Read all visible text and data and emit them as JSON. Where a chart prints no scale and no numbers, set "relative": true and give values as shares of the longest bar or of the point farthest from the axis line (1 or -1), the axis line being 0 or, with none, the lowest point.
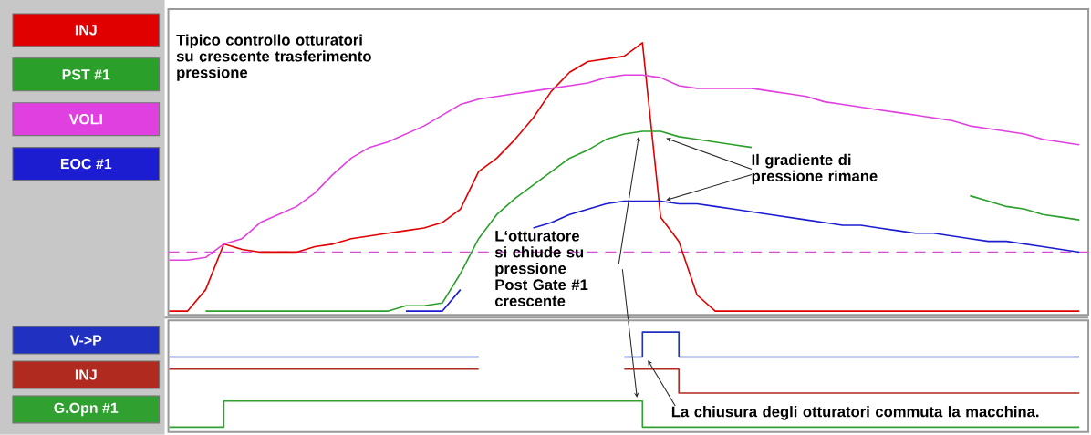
{
  "chart_data": [
    {
      "type": "line",
      "relative": true,
      "legend": "left",
      "categories": [
        null,
        null,
        null,
        null,
        null,
        null,
        null,
        null,
        null,
        null,
        null,
        null,
        null,
        null,
        null,
        null,
        null,
        null,
        null,
        null,
        null,
        null,
        null,
        null,
        null,
        null,
        null,
        null,
        null,
        null,
        null,
        null,
        null,
        null,
        null,
        null,
        null,
        null,
        null,
        null,
        null,
        null,
        null,
        null,
        null,
        null,
        null,
        null,
        null,
        null,
        null
      ],
      "series": [
        {
          "name": "INJ",
          "color": "#e00000",
          "values": [
            0,
            0,
            0.08,
            0.25,
            0.23,
            0.22,
            0.22,
            0.22,
            0.24,
            0.25,
            0.27,
            0.28,
            0.29,
            0.3,
            0.31,
            0.33,
            0.38,
            0.52,
            0.57,
            0.64,
            0.72,
            0.82,
            0.89,
            0.93,
            0.94,
            0.95,
            1.0,
            0.35,
            0.26,
            0.06,
            0,
            0,
            0,
            0,
            0,
            0,
            0,
            0,
            0,
            0,
            0,
            0,
            0,
            0,
            0,
            0,
            0,
            0,
            0,
            0,
            0
          ]
        },
        {
          "name": "PST #1",
          "color": "#2aa02a",
          "values": [
            null,
            null,
            0,
            0,
            0,
            0,
            0,
            0,
            0,
            0,
            0,
            0,
            0,
            0.02,
            0.02,
            0.03,
            0.14,
            0.27,
            0.36,
            0.42,
            0.47,
            0.52,
            0.57,
            0.6,
            0.64,
            0.66,
            0.67,
            0.67,
            0.65,
            0.64,
            0.63,
            0.62,
            0.61,
            null,
            null,
            null,
            null,
            null,
            null,
            null,
            null,
            null,
            null,
            null,
            0.43,
            0.41,
            0.39,
            0.38,
            0.36,
            0.35,
            0.34
          ]
        },
        {
          "name": "VOLI",
          "color": "#e040e0",
          "values": [
            0.19,
            0.19,
            0.2,
            0.25,
            0.27,
            0.33,
            0.36,
            0.39,
            0.44,
            0.51,
            0.57,
            0.61,
            0.63,
            0.66,
            0.69,
            0.73,
            0.77,
            0.79,
            0.8,
            0.81,
            0.82,
            0.83,
            0.84,
            0.85,
            0.87,
            0.88,
            0.88,
            0.87,
            0.84,
            0.83,
            0.83,
            0.83,
            0.83,
            0.82,
            0.81,
            0.8,
            0.78,
            0.77,
            0.76,
            0.75,
            0.74,
            0.73,
            0.72,
            0.71,
            0.69,
            0.68,
            0.67,
            0.66,
            0.64,
            0.63,
            0.62
          ]
        },
        {
          "name": "EOC #1",
          "color": "#1c1cd0",
          "values": [
            null,
            null,
            null,
            null,
            null,
            null,
            null,
            null,
            null,
            null,
            null,
            null,
            null,
            0,
            0,
            0,
            0.08,
            null,
            null,
            null,
            0.31,
            0.33,
            0.36,
            0.38,
            0.4,
            0.41,
            0.41,
            0.41,
            0.4,
            0.4,
            0.39,
            0.38,
            0.37,
            0.36,
            0.35,
            0.34,
            0.33,
            0.32,
            0.32,
            0.31,
            0.3,
            0.29,
            0.29,
            0.28,
            0.27,
            0.26,
            0.26,
            0.25,
            0.24,
            0.23,
            0.22
          ]
        }
      ],
      "ref_lines": [
        {
          "axis": "y",
          "value": 0.22,
          "color": "#d050d0",
          "line_style": "dashed"
        }
      ],
      "annotations": [
        "Tipico controllo otturatori su crescente trasferimento pressione",
        "Il gradiente di pressione rimane",
        "L‘otturatore si chiude su pressione Post Gate #1 crescente"
      ]
    },
    {
      "type": "step",
      "relative": true,
      "legend": "left",
      "categories": [
        null,
        null,
        null,
        null,
        null,
        null,
        null,
        null,
        null,
        null,
        null,
        null,
        null,
        null,
        null,
        null,
        null,
        null,
        null,
        null,
        null,
        null,
        null,
        null,
        null,
        null,
        null,
        null,
        null,
        null,
        null,
        null,
        null,
        null,
        null,
        null,
        null,
        null,
        null,
        null,
        null,
        null,
        null,
        null,
        null,
        null,
        null,
        null,
        null,
        null,
        null
      ],
      "series": [
        {
          "name": "V->P",
          "color": "#2030c0",
          "values": [
            0.75,
            0.75,
            0.75,
            0.75,
            0.75,
            0.75,
            0.75,
            0.75,
            0.75,
            0.75,
            0.75,
            0.75,
            0.75,
            0.75,
            0.75,
            0.75,
            0.75,
            0.75,
            null,
            null,
            null,
            null,
            null,
            null,
            null,
            0.75,
            1.0,
            1.0,
            0.75,
            0.75,
            0.75,
            0.75,
            0.75,
            0.75,
            0.75,
            0.75,
            0.75,
            0.75,
            0.75,
            0.75,
            0.75,
            0.75,
            0.75,
            0.75,
            0.75,
            0.75,
            0.75,
            0.75,
            0.75,
            0.75,
            0.75
          ]
        },
        {
          "name": "INJ",
          "color": "#b02a20",
          "values": [
            0.63,
            0.63,
            0.63,
            0.63,
            0.63,
            0.63,
            0.63,
            0.63,
            0.63,
            0.63,
            0.63,
            0.63,
            0.63,
            0.63,
            0.63,
            0.63,
            0.63,
            0.63,
            null,
            null,
            null,
            null,
            null,
            null,
            null,
            0.63,
            0.63,
            0.63,
            0.39,
            0.39,
            0.39,
            0.39,
            0.39,
            0.39,
            0.39,
            0.39,
            0.39,
            0.39,
            0.39,
            0.39,
            0.39,
            0.39,
            0.39,
            0.39,
            0.39,
            0.39,
            0.39,
            0.39,
            0.39,
            0.39,
            0.39
          ]
        },
        {
          "name": "G.Opn #1",
          "color": "#30a030",
          "values": [
            0.05,
            0.05,
            0.05,
            0.31,
            0.31,
            0.31,
            0.31,
            0.31,
            0.31,
            0.31,
            0.31,
            0.31,
            0.31,
            0.31,
            0.31,
            0.31,
            0.31,
            0.31,
            0.31,
            0.31,
            0.31,
            0.31,
            0.31,
            0.31,
            0.31,
            0.31,
            0.05,
            0.05,
            0.05,
            0.05,
            0.05,
            0.05,
            0.05,
            0.05,
            0.05,
            0.05,
            0.05,
            0.05,
            0.05,
            0.05,
            0.05,
            0.05,
            0.05,
            0.05,
            0.05,
            0.05,
            0.05,
            0.05,
            0.05,
            0.05,
            0.05
          ]
        }
      ],
      "annotations": [
        "La chiusura degli otturatori commuta la macchina."
      ]
    }
  ]
}
